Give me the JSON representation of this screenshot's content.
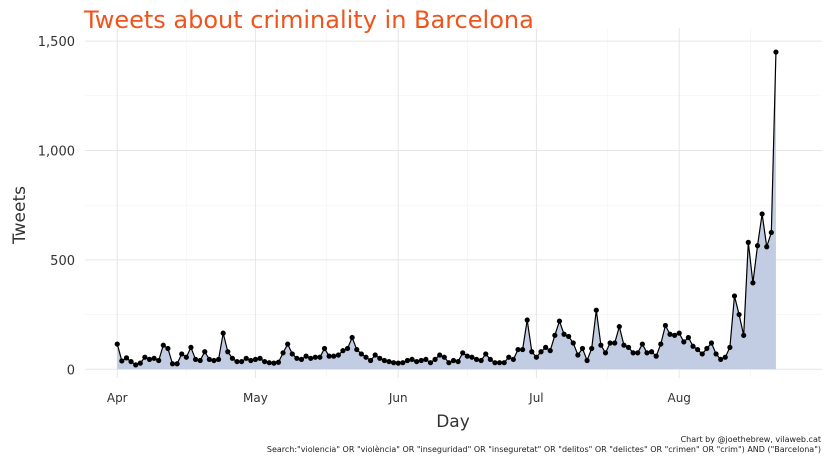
{
  "chart_data": {
    "type": "area",
    "title": "Tweets about criminality in Barcelona",
    "xlabel": "Day",
    "ylabel": "Tweets",
    "x_start": "2020-04-01",
    "x_ticks": [
      {
        "label": "Apr",
        "date": "2020-04-01"
      },
      {
        "label": "May",
        "date": "2020-05-01"
      },
      {
        "label": "Jun",
        "date": "2020-06-01"
      },
      {
        "label": "Jul",
        "date": "2020-07-01"
      },
      {
        "label": "Aug",
        "date": "2020-08-01"
      }
    ],
    "xlim": [
      "2020-03-25",
      "2020-09-01"
    ],
    "y_ticks": [
      {
        "label": "0",
        "value": 0
      },
      {
        "label": "500",
        "value": 500
      },
      {
        "label": "1,000",
        "value": 1000
      },
      {
        "label": "1,500",
        "value": 1500
      }
    ],
    "ylim": [
      -40,
      1560
    ],
    "grid": true,
    "colors": {
      "line": "#000000",
      "fill": "#c2cde3",
      "point": "#000000",
      "title": "#f0541c",
      "grid": "#e6e6e6"
    },
    "values": [
      115,
      38,
      52,
      35,
      20,
      28,
      55,
      45,
      50,
      40,
      110,
      95,
      25,
      25,
      70,
      55,
      100,
      45,
      40,
      80,
      45,
      40,
      45,
      165,
      80,
      50,
      35,
      35,
      50,
      40,
      45,
      50,
      35,
      30,
      28,
      32,
      75,
      115,
      70,
      50,
      45,
      60,
      50,
      55,
      55,
      95,
      60,
      60,
      65,
      85,
      95,
      145,
      90,
      70,
      55,
      40,
      65,
      50,
      40,
      35,
      30,
      28,
      30,
      40,
      45,
      35,
      40,
      45,
      30,
      45,
      65,
      55,
      30,
      40,
      35,
      75,
      60,
      55,
      45,
      40,
      70,
      45,
      30,
      30,
      30,
      55,
      45,
      90,
      90,
      225,
      80,
      55,
      80,
      100,
      85,
      155,
      220,
      160,
      150,
      120,
      65,
      95,
      40,
      95,
      270,
      110,
      75,
      120,
      120,
      195,
      110,
      100,
      75,
      75,
      115,
      75,
      80,
      60,
      115,
      200,
      160,
      155,
      165,
      125,
      145,
      105,
      90,
      70,
      95,
      120,
      70,
      45,
      55,
      100,
      335,
      250,
      155,
      580,
      395,
      565,
      710,
      560,
      625,
      1450
    ]
  },
  "credit": {
    "line1": "Chart by @joethebrew, vilaweb.cat",
    "line2": "Search:\"violencia\" OR \"violència\" OR \"inseguridad\" OR \"inseguretat\" OR \"delitos\" OR \"delictes\" OR \"crimen\" OR \"crim\") AND (\"Barcelona\")"
  }
}
